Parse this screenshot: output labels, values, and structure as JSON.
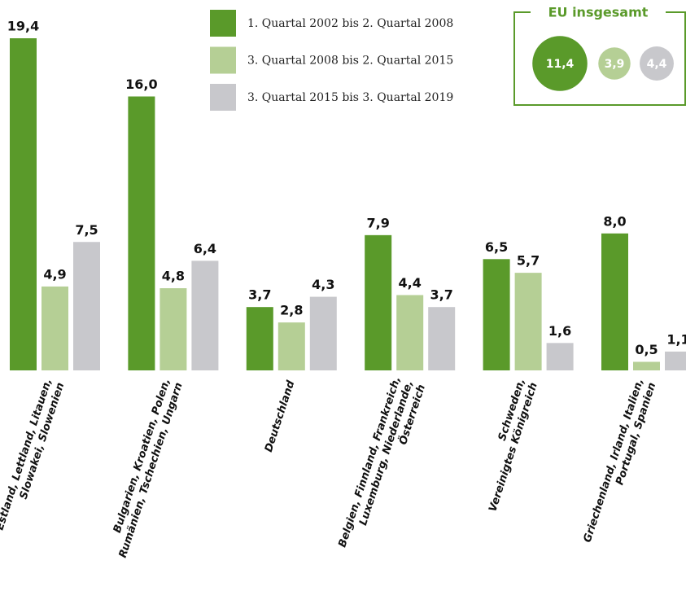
{
  "chart_data": {
    "type": "bar",
    "categories": [
      [
        "Estland, Lettland, Litauen,",
        "Slowakei, Slowenien"
      ],
      [
        "Bulgarien, Kroatien, Polen,",
        "Rumänien, Tschechien, Ungarn"
      ],
      [
        "Deutschland"
      ],
      [
        "Belgien, Finnland, Frankreich,",
        "Luxemburg, Niederlande,",
        "Österreich"
      ],
      [
        "Schweden,",
        "Vereinigtes Königreich"
      ],
      [
        "Griechenland, Irland, Italien,",
        "Portugal, Spanien"
      ]
    ],
    "series": [
      {
        "name": "1. Quartal 2002 bis 2. Quartal 2008",
        "color": "#5a9a2a",
        "values": [
          19.4,
          16.0,
          3.7,
          7.9,
          6.5,
          8.0
        ],
        "value_labels": [
          "19,4",
          "16,0",
          "3,7",
          "7,9",
          "6,5",
          "8,0"
        ]
      },
      {
        "name": "3. Quartal 2008 bis 2. Quartal 2015",
        "color": "#b5cf95",
        "values": [
          4.9,
          4.8,
          2.8,
          4.4,
          5.7,
          0.5
        ],
        "value_labels": [
          "4,9",
          "4,8",
          "2,8",
          "4,4",
          "5,7",
          "0,5"
        ]
      },
      {
        "name": "3. Quartal 2015 bis 3. Quartal 2019",
        "color": "#c8c8cc",
        "values": [
          7.5,
          6.4,
          4.3,
          3.7,
          1.6,
          1.1
        ],
        "value_labels": [
          "7,5",
          "6,4",
          "4,3",
          "3,7",
          "1,6",
          "1,1"
        ]
      }
    ],
    "eu_total": {
      "title": "EU insgesamt",
      "values": [
        11.4,
        3.9,
        4.4
      ],
      "value_labels": [
        "11,4",
        "3,9",
        "4,4"
      ]
    }
  }
}
